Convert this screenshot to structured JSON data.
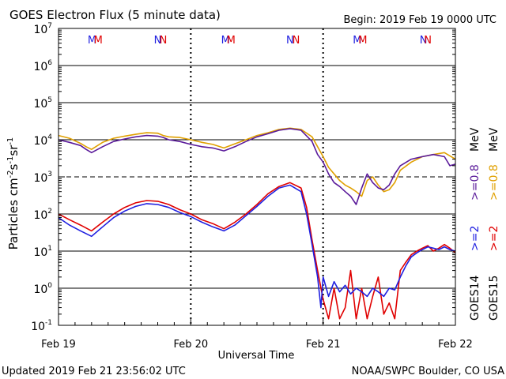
{
  "title": "GOES Electron Flux (5 minute data)",
  "begin": "Begin: 2019 Feb 19 0000 UTC",
  "updated": "Updated 2019 Feb 21 23:56:02 UTC",
  "credit": "NOAA/SWPC Boulder, CO USA",
  "colors": {
    "goes14_2mev": "#1f1fe0",
    "goes15_2mev": "#e00000",
    "goes14_08mev": "#5a1a9a",
    "goes15_08mev": "#e0a000"
  },
  "chart_data": {
    "type": "line",
    "title": "GOES Electron Flux (5 minute data)",
    "xlabel": "Universal Time",
    "ylabel": "Particles cm-2s-1sr-1",
    "yscale": "log",
    "ylim": [
      0.1,
      10000000
    ],
    "xlim": [
      0,
      72
    ],
    "x_unit": "hours since 2019 Feb 19 0000 UTC",
    "x_ticks": [
      "Feb 19",
      "Feb 20",
      "Feb 21",
      "Feb 22"
    ],
    "y_tick_exponents": [
      "-1",
      "0",
      "1",
      "2",
      "3",
      "4",
      "5",
      "6",
      "7"
    ],
    "threshold_line": 1000,
    "markers": {
      "M": [
        6.1,
        7.2,
        30.3,
        31.3,
        54.2,
        55.2
      ],
      "N": [
        18.0,
        19.0,
        42.0,
        43.1,
        66.2,
        67.0
      ]
    },
    "marker_labels": [
      "M",
      "N"
    ],
    "right_labels": {
      "goes14": "GOES14",
      "goes15": "GOES15",
      "s14_2": ">=2",
      "s15_2": ">=2",
      "s14_08": ">=0.8",
      "s15_08": ">=0.8",
      "unit": "MeV"
    },
    "series": [
      {
        "name": ">=0.8 MeV GOES15",
        "color": "#e0a000",
        "x": [
          0,
          2,
          4,
          5,
          6,
          8,
          10,
          12,
          14,
          16,
          18,
          19,
          20,
          22,
          24,
          26,
          28,
          30,
          32,
          34,
          36,
          38,
          40,
          42,
          44,
          46,
          48,
          49,
          50,
          51,
          52,
          53,
          54,
          55,
          56,
          57,
          58,
          59,
          60,
          61,
          62,
          64,
          66,
          68,
          70,
          72
        ],
        "y": [
          13000,
          11000,
          8000,
          6500,
          5500,
          8500,
          11000,
          12500,
          14000,
          15500,
          15000,
          13000,
          12000,
          11500,
          10000,
          8500,
          7500,
          6000,
          7800,
          10000,
          13000,
          15500,
          19000,
          20500,
          19000,
          12000,
          3500,
          1800,
          1200,
          800,
          600,
          500,
          400,
          300,
          800,
          1000,
          600,
          400,
          450,
          700,
          1500,
          2500,
          3500,
          4000,
          4500,
          3000
        ]
      },
      {
        "name": ">=0.8 MeV GOES14",
        "color": "#5a1a9a",
        "x": [
          0,
          2,
          4,
          5,
          6,
          8,
          10,
          12,
          14,
          16,
          18,
          19,
          20,
          22,
          24,
          26,
          28,
          30,
          32,
          34,
          36,
          38,
          40,
          42,
          44,
          46,
          47,
          48,
          49,
          50,
          51,
          52,
          53,
          54,
          55,
          56,
          57,
          58,
          59,
          60,
          61,
          62,
          64,
          66,
          68,
          70,
          71,
          72
        ],
        "y": [
          10000,
          8500,
          7000,
          5500,
          4500,
          6500,
          9000,
          10500,
          12000,
          13000,
          12500,
          11500,
          10000,
          9000,
          7500,
          6500,
          6000,
          5000,
          6500,
          9000,
          12000,
          14500,
          18000,
          20000,
          18000,
          9000,
          4000,
          2500,
          1200,
          700,
          550,
          400,
          300,
          180,
          500,
          1200,
          700,
          500,
          450,
          600,
          1200,
          2000,
          3000,
          3500,
          4000,
          3500,
          2000,
          2200
        ]
      },
      {
        "name": ">=2 MeV GOES15",
        "color": "#e00000",
        "x": [
          0,
          2,
          4,
          6,
          8,
          10,
          12,
          14,
          16,
          18,
          20,
          22,
          24,
          26,
          28,
          30,
          32,
          34,
          36,
          38,
          40,
          42,
          44,
          45,
          46,
          47,
          48,
          49,
          50,
          51,
          52,
          53,
          54,
          55,
          56,
          57,
          58,
          59,
          60,
          61,
          62,
          63,
          64,
          65,
          66,
          67,
          68,
          69,
          70,
          71,
          72
        ],
        "y": [
          100,
          70,
          50,
          35,
          60,
          100,
          150,
          200,
          230,
          220,
          180,
          130,
          100,
          70,
          55,
          40,
          60,
          100,
          180,
          350,
          550,
          700,
          500,
          150,
          20,
          3,
          0.5,
          0.15,
          1,
          0.15,
          0.3,
          3,
          0.15,
          1,
          0.15,
          0.6,
          2,
          0.2,
          0.4,
          0.15,
          3,
          5,
          8,
          10,
          12,
          14,
          10,
          12,
          15,
          12,
          9
        ]
      },
      {
        "name": ">=2 MeV GOES14",
        "color": "#1f1fe0",
        "x": [
          0,
          2,
          4,
          6,
          8,
          10,
          12,
          14,
          16,
          18,
          20,
          22,
          24,
          26,
          28,
          30,
          32,
          34,
          36,
          38,
          40,
          42,
          44,
          45,
          46,
          47,
          47.6,
          48,
          49,
          50,
          51,
          52,
          53,
          54,
          55,
          56,
          57,
          58,
          59,
          60,
          61,
          62,
          63,
          64,
          65,
          66,
          67,
          68,
          69,
          70,
          71,
          72
        ],
        "y": [
          80,
          50,
          35,
          25,
          45,
          80,
          120,
          160,
          190,
          180,
          150,
          110,
          85,
          60,
          45,
          35,
          50,
          90,
          160,
          300,
          500,
          600,
          400,
          100,
          15,
          2,
          0.3,
          2,
          0.6,
          1.5,
          0.8,
          1.2,
          0.7,
          1,
          0.8,
          0.6,
          1,
          0.8,
          0.6,
          1,
          0.9,
          2,
          4,
          7,
          9,
          11,
          13,
          12,
          11,
          13,
          11,
          10
        ]
      }
    ]
  }
}
